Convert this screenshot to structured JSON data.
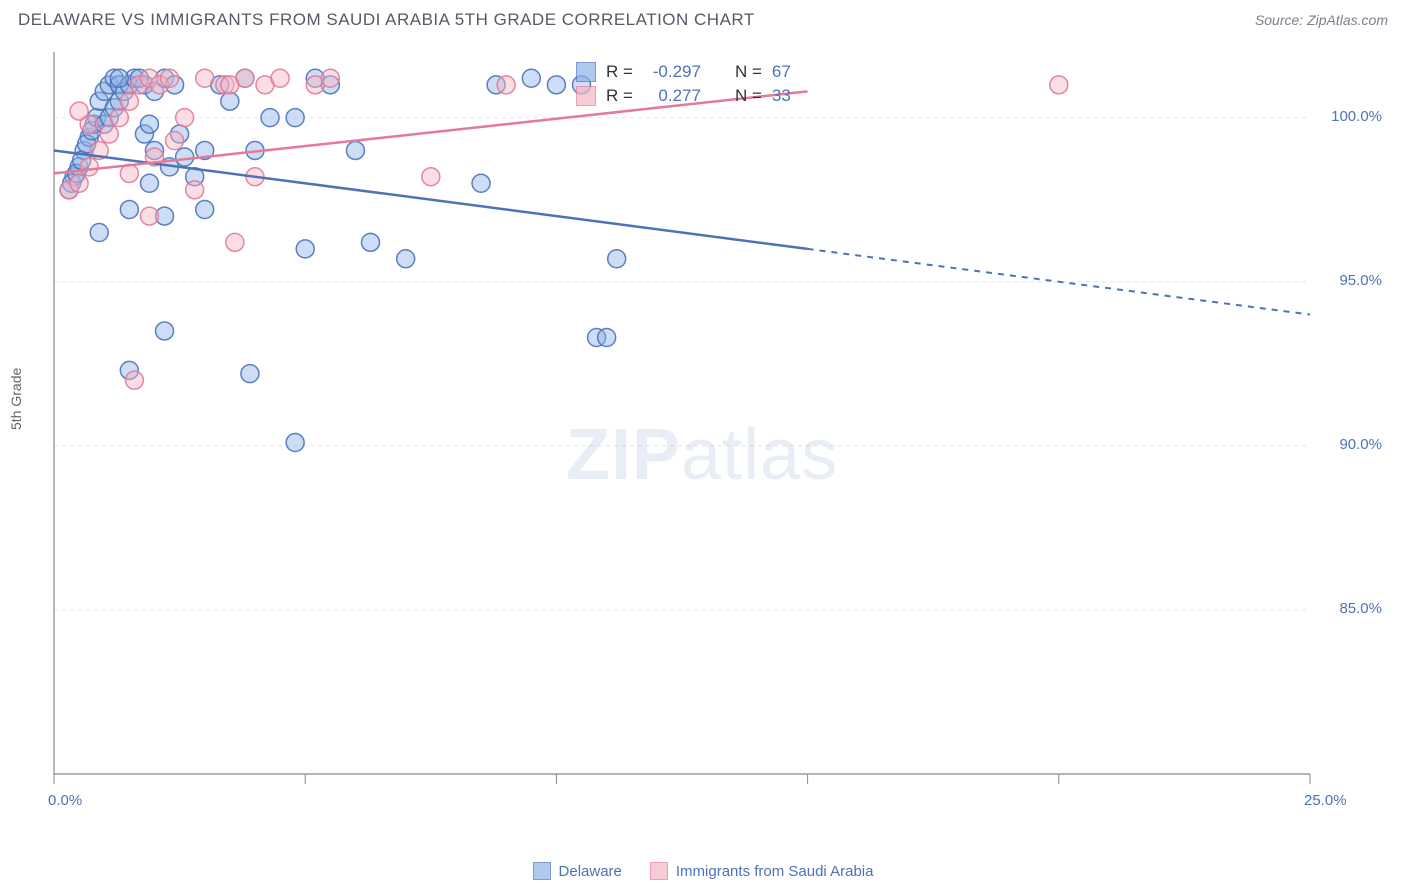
{
  "title": "DELAWARE VS IMMIGRANTS FROM SAUDI ARABIA 5TH GRADE CORRELATION CHART",
  "source": "Source: ZipAtlas.com",
  "y_axis_label": "5th Grade",
  "watermark": {
    "bold": "ZIP",
    "rest": "atlas"
  },
  "chart": {
    "type": "scatter",
    "xlim": [
      0,
      25
    ],
    "ylim": [
      80,
      102
    ],
    "x_ticks": [
      0,
      5,
      10,
      15,
      20,
      25
    ],
    "y_grid": [
      85,
      90,
      95,
      100
    ],
    "x_tick_labels": {
      "0": "0.0%",
      "25": "25.0%"
    },
    "y_tick_labels": {
      "85": "85.0%",
      "90": "90.0%",
      "95": "95.0%",
      "100": "100.0%"
    },
    "background_color": "#ffffff",
    "grid_color": "#e4e4e4",
    "axis_color": "#888888",
    "marker_radius": 9,
    "marker_opacity": 0.45,
    "series": [
      {
        "name": "Delaware",
        "color_fill": "#8fb3e8",
        "color_stroke": "#4d72b8",
        "R": "-0.297",
        "N": "67",
        "points": [
          [
            0.3,
            97.8
          ],
          [
            0.4,
            98.2
          ],
          [
            0.5,
            98.5
          ],
          [
            0.6,
            99.0
          ],
          [
            0.7,
            99.4
          ],
          [
            0.8,
            99.8
          ],
          [
            0.35,
            98.0
          ],
          [
            0.45,
            98.3
          ],
          [
            0.55,
            98.7
          ],
          [
            0.65,
            99.2
          ],
          [
            0.75,
            99.6
          ],
          [
            0.85,
            100.0
          ],
          [
            0.9,
            100.5
          ],
          [
            1.0,
            100.8
          ],
          [
            1.1,
            101.0
          ],
          [
            1.2,
            101.2
          ],
          [
            1.3,
            101.0
          ],
          [
            1.0,
            99.8
          ],
          [
            1.1,
            100.0
          ],
          [
            1.2,
            100.3
          ],
          [
            1.3,
            100.5
          ],
          [
            1.4,
            100.8
          ],
          [
            1.5,
            101.0
          ],
          [
            1.6,
            101.2
          ],
          [
            1.8,
            101.0
          ],
          [
            2.0,
            100.8
          ],
          [
            2.2,
            101.2
          ],
          [
            2.5,
            99.5
          ],
          [
            2.8,
            98.2
          ],
          [
            3.0,
            97.2
          ],
          [
            2.2,
            97.0
          ],
          [
            1.9,
            98.0
          ],
          [
            1.5,
            97.2
          ],
          [
            1.8,
            99.5
          ],
          [
            2.0,
            99.0
          ],
          [
            2.3,
            98.5
          ],
          [
            2.6,
            98.8
          ],
          [
            3.0,
            99.0
          ],
          [
            3.3,
            101.0
          ],
          [
            3.5,
            100.5
          ],
          [
            3.8,
            101.2
          ],
          [
            4.0,
            99.0
          ],
          [
            4.3,
            100.0
          ],
          [
            4.8,
            100.0
          ],
          [
            5.2,
            101.2
          ],
          [
            5.5,
            101.0
          ],
          [
            5.0,
            96.0
          ],
          [
            6.0,
            99.0
          ],
          [
            6.3,
            96.2
          ],
          [
            7.0,
            95.7
          ],
          [
            4.8,
            90.1
          ],
          [
            8.5,
            98.0
          ],
          [
            8.8,
            101.0
          ],
          [
            9.5,
            101.2
          ],
          [
            10.0,
            101.0
          ],
          [
            10.5,
            101.0
          ],
          [
            10.8,
            93.3
          ],
          [
            11.0,
            93.3
          ],
          [
            11.2,
            95.7
          ],
          [
            2.2,
            93.5
          ],
          [
            3.9,
            92.2
          ],
          [
            1.5,
            92.3
          ],
          [
            0.9,
            96.5
          ],
          [
            1.3,
            101.2
          ],
          [
            1.7,
            101.2
          ],
          [
            1.9,
            99.8
          ],
          [
            2.4,
            101.0
          ]
        ],
        "regression": {
          "x1": 0,
          "y1": 99.0,
          "x2": 15,
          "y2": 96.0,
          "dash_to_x": 25,
          "dash_to_y": 94.0
        }
      },
      {
        "name": "Immigrants from Saudi Arabia",
        "color_fill": "#f4b6c4",
        "color_stroke": "#e37a98",
        "R": "0.277",
        "N": "33",
        "points": [
          [
            0.3,
            97.8
          ],
          [
            0.5,
            98.0
          ],
          [
            0.7,
            98.5
          ],
          [
            0.9,
            99.0
          ],
          [
            1.1,
            99.5
          ],
          [
            1.3,
            100.0
          ],
          [
            1.5,
            100.5
          ],
          [
            1.7,
            101.0
          ],
          [
            1.9,
            101.2
          ],
          [
            2.1,
            101.0
          ],
          [
            2.3,
            101.2
          ],
          [
            2.6,
            100.0
          ],
          [
            3.0,
            101.2
          ],
          [
            3.4,
            101.0
          ],
          [
            3.8,
            101.2
          ],
          [
            4.2,
            101.0
          ],
          [
            4.0,
            98.2
          ],
          [
            2.8,
            97.8
          ],
          [
            1.9,
            97.0
          ],
          [
            1.5,
            98.3
          ],
          [
            0.7,
            99.8
          ],
          [
            0.5,
            100.2
          ],
          [
            3.6,
            96.2
          ],
          [
            2.0,
            98.8
          ],
          [
            5.2,
            101.0
          ],
          [
            5.5,
            101.2
          ],
          [
            9.0,
            101.0
          ],
          [
            7.5,
            98.2
          ],
          [
            1.6,
            92.0
          ],
          [
            3.5,
            101.0
          ],
          [
            20.0,
            101.0
          ],
          [
            4.5,
            101.2
          ],
          [
            2.4,
            99.3
          ]
        ],
        "regression": {
          "x1": 0,
          "y1": 98.3,
          "x2": 15,
          "y2": 100.8,
          "dash_to_x": null,
          "dash_to_y": null
        }
      }
    ]
  },
  "stat_legend": {
    "rows": [
      {
        "swatch": 0,
        "r_label": "R =",
        "n_label": "N ="
      },
      {
        "swatch": 1,
        "r_label": "R =",
        "n_label": "N ="
      }
    ]
  },
  "bottom_legend": [
    {
      "series": 0
    },
    {
      "series": 1
    }
  ]
}
